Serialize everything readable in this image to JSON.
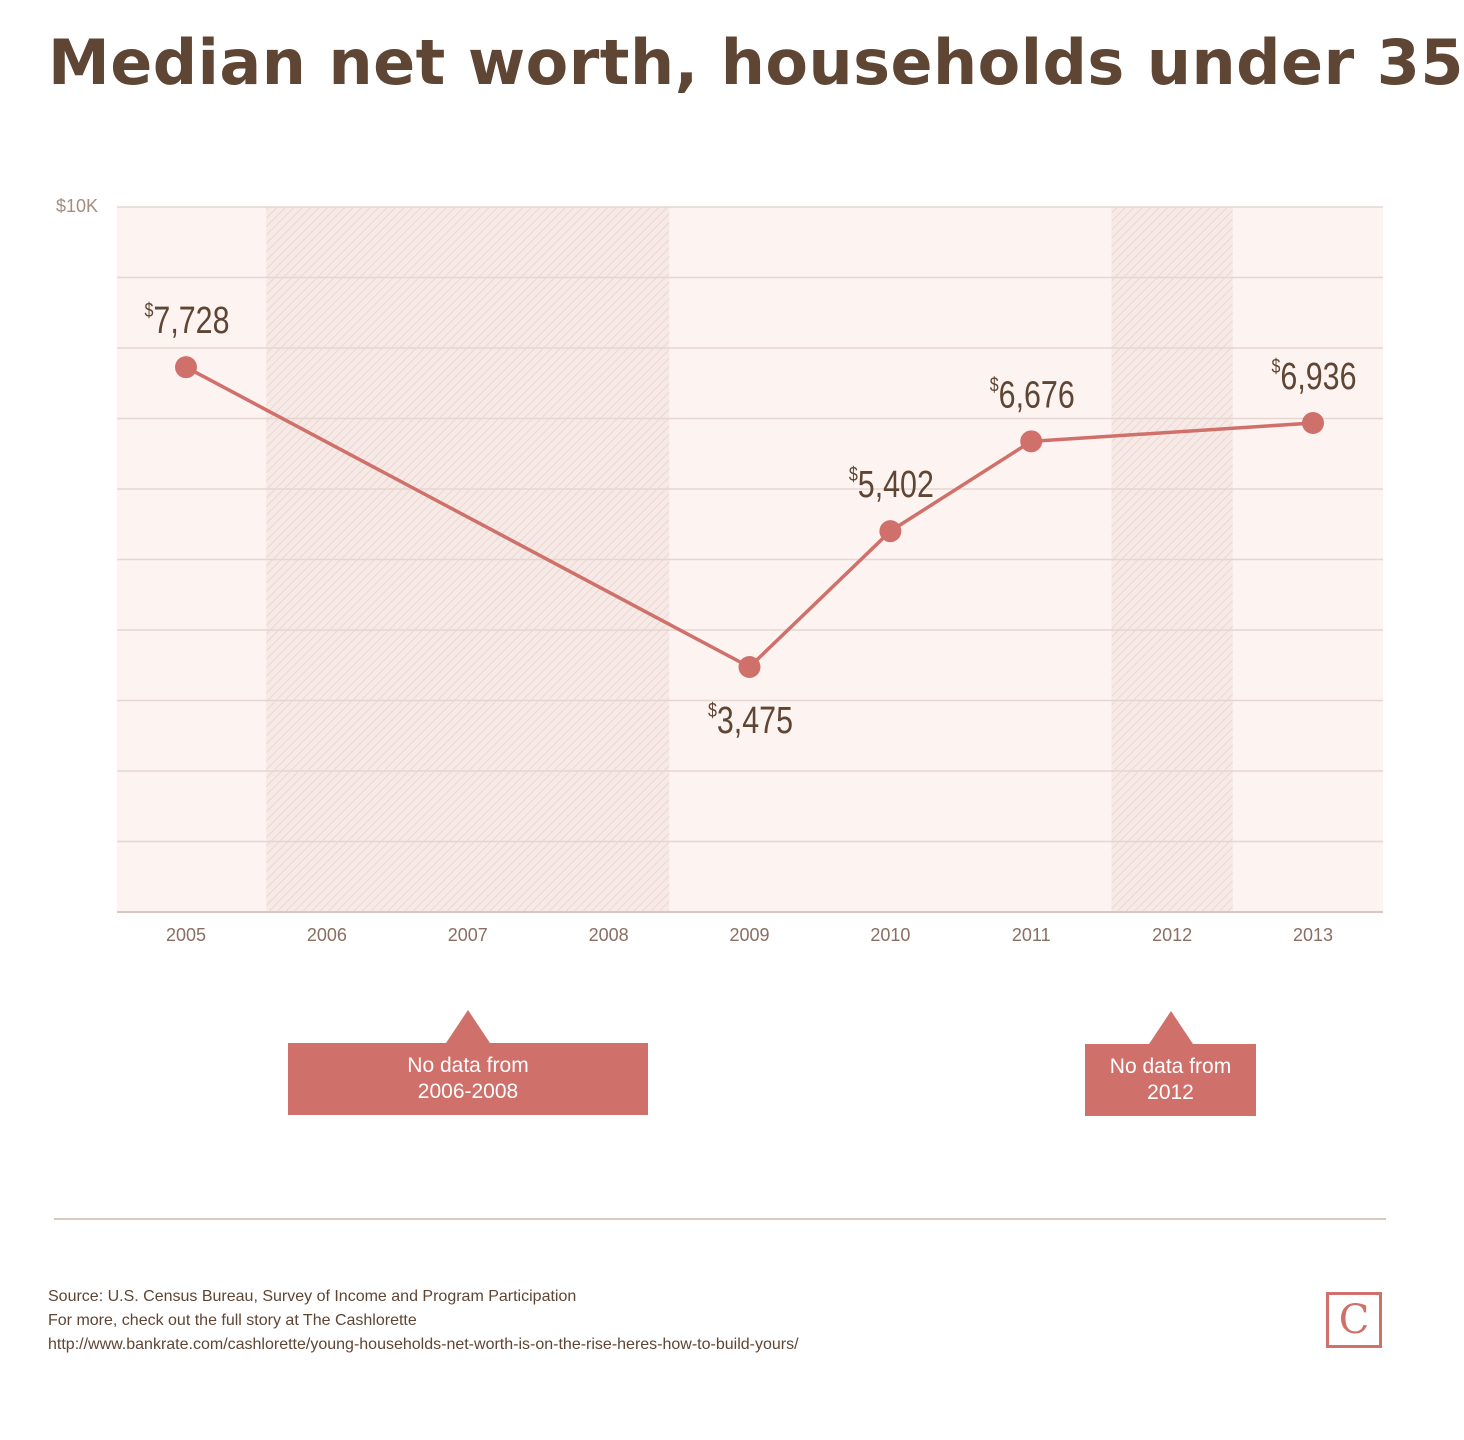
{
  "title": "Median net worth, households under 35",
  "chart_data": {
    "type": "line",
    "y_top_label": "$10K",
    "ylim": [
      0,
      10000
    ],
    "ytick_step": 1000,
    "categories": [
      "2005",
      "2006",
      "2007",
      "2008",
      "2009",
      "2010",
      "2011",
      "2012",
      "2013"
    ],
    "series": [
      {
        "points": [
          {
            "x": "2005",
            "y": 7728,
            "label": "7,728"
          },
          {
            "x": "2009",
            "y": 3475,
            "label": "3,475"
          },
          {
            "x": "2010",
            "y": 5402,
            "label": "5,402"
          },
          {
            "x": "2011",
            "y": 6676,
            "label": "6,676"
          },
          {
            "x": "2013",
            "y": 6936,
            "label": "6,936"
          }
        ]
      }
    ],
    "currency_symbol": "$",
    "no_data_ranges": [
      {
        "from": "2006",
        "to": "2008"
      },
      {
        "from": "2012",
        "to": "2012"
      }
    ],
    "grid": true,
    "colors": {
      "line": "#d0706a",
      "plot_bg": "#fdf3f1",
      "gridline": "#e6d6d1",
      "text": "#5f4533"
    }
  },
  "callouts": [
    {
      "line1": "No data from",
      "line2": "2006-2008"
    },
    {
      "line1": "No data from",
      "line2": "2012"
    }
  ],
  "footer": {
    "source": "Source: U.S. Census Bureau, Survey of Income and Program Participation",
    "more": "For more, check out the full story at The Cashlorette",
    "url": "http://www.bankrate.com/cashlorette/young-households-net-worth-is-on-the-rise-heres-how-to-build-yours/"
  },
  "logo_letter": "C"
}
